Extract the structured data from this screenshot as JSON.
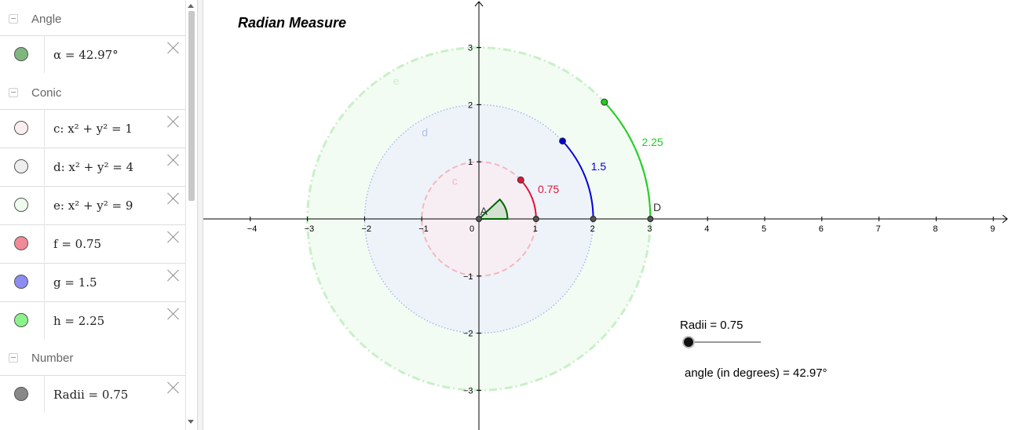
{
  "algebra": {
    "categories": [
      {
        "label": "Angle"
      },
      {
        "label": "Conic"
      },
      {
        "label": "Number"
      }
    ],
    "rows": [
      {
        "expr": "α = 42.97°",
        "color": "#7fb77f"
      },
      {
        "expr": "c: x² + y² = 1",
        "color": "#fbeeee"
      },
      {
        "expr": "d: x² + y² = 4",
        "color": "#eeeeee"
      },
      {
        "expr": "e: x² + y² = 9",
        "color": "#eefbee"
      },
      {
        "expr": "f = 0.75",
        "color": "#f28a98"
      },
      {
        "expr": "g = 1.5",
        "color": "#8c8cf2"
      },
      {
        "expr": "h = 2.25",
        "color": "#8cf28c"
      },
      {
        "expr": "Radii = 0.75",
        "color": "#888888"
      }
    ]
  },
  "graphics": {
    "title": "Radian Measure",
    "x_ticks": [
      "−4",
      "−3",
      "−2",
      "−1",
      "0",
      "1",
      "2",
      "3",
      "4",
      "5",
      "6",
      "7",
      "8",
      "9"
    ],
    "y_ticks": [
      "3",
      "2",
      "1",
      "−1",
      "−2",
      "−3"
    ],
    "circle_labels": {
      "c": "c",
      "d": "d",
      "e": "e"
    },
    "arc_labels": {
      "f": "0.75",
      "g": "1.5",
      "h": "2.25"
    },
    "point_labels": {
      "A": "A",
      "D": "D"
    },
    "slider_label": "Radii = 0.75",
    "angle_text": "angle (in degrees) = 42.97°",
    "colors": {
      "red": "#e0143c",
      "blue": "#0000dd",
      "green": "#22cc22",
      "angle": "#006400"
    }
  }
}
